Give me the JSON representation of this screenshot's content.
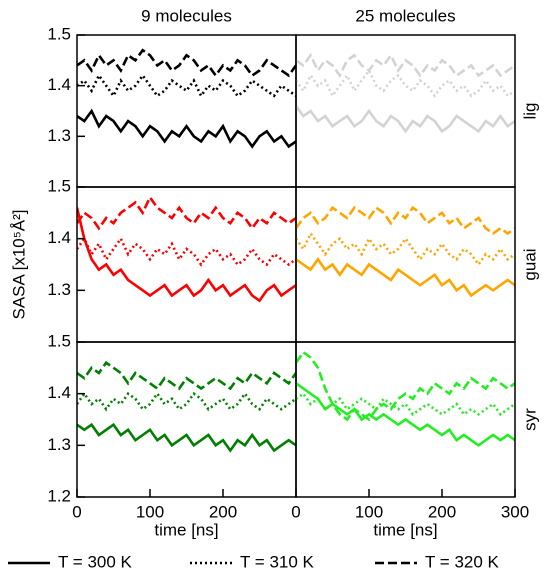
{
  "chart_data": [
    {
      "type": "line",
      "title": "9 molecules",
      "xlim": [
        0,
        300
      ],
      "ylim": [
        1.2,
        1.5
      ],
      "yticks": [
        1.3,
        1.4,
        1.5
      ],
      "legend": "bottom",
      "x": [
        0,
        10,
        20,
        30,
        40,
        50,
        60,
        70,
        80,
        90,
        100,
        110,
        120,
        130,
        140,
        150,
        160,
        170,
        180,
        190,
        200,
        210,
        220,
        230,
        240,
        250,
        260,
        270,
        280,
        290,
        300
      ],
      "series": [
        {
          "name": "T = 300 K",
          "color": "#000000",
          "dash": "solid",
          "values": [
            1.34,
            1.33,
            1.35,
            1.32,
            1.34,
            1.33,
            1.31,
            1.33,
            1.32,
            1.3,
            1.32,
            1.31,
            1.29,
            1.31,
            1.3,
            1.32,
            1.3,
            1.29,
            1.31,
            1.3,
            1.32,
            1.29,
            1.31,
            1.3,
            1.28,
            1.3,
            1.31,
            1.29,
            1.3,
            1.28,
            1.29
          ]
        },
        {
          "name": "T = 310 K",
          "color": "#000000",
          "dash": "dotted",
          "values": [
            1.4,
            1.41,
            1.39,
            1.42,
            1.4,
            1.38,
            1.41,
            1.39,
            1.4,
            1.42,
            1.4,
            1.38,
            1.39,
            1.41,
            1.4,
            1.39,
            1.41,
            1.38,
            1.4,
            1.39,
            1.41,
            1.4,
            1.38,
            1.39,
            1.41,
            1.4,
            1.39,
            1.38,
            1.4,
            1.39,
            1.38
          ]
        },
        {
          "name": "T = 320 K",
          "color": "#000000",
          "dash": "dashed",
          "values": [
            1.44,
            1.45,
            1.43,
            1.46,
            1.44,
            1.45,
            1.43,
            1.46,
            1.45,
            1.47,
            1.46,
            1.44,
            1.45,
            1.43,
            1.44,
            1.46,
            1.45,
            1.43,
            1.44,
            1.42,
            1.44,
            1.43,
            1.45,
            1.44,
            1.42,
            1.43,
            1.45,
            1.44,
            1.43,
            1.42,
            1.44
          ]
        }
      ]
    },
    {
      "type": "line",
      "title": "25 molecules",
      "annotation": "lig",
      "xlim": [
        0,
        300
      ],
      "ylim": [
        1.2,
        1.5
      ],
      "x": [
        0,
        10,
        20,
        30,
        40,
        50,
        60,
        70,
        80,
        90,
        100,
        110,
        120,
        130,
        140,
        150,
        160,
        170,
        180,
        190,
        200,
        210,
        220,
        230,
        240,
        250,
        260,
        270,
        280,
        290,
        300
      ],
      "series": [
        {
          "color": "#d3d3d3",
          "dash": "solid",
          "values": [
            1.36,
            1.34,
            1.35,
            1.33,
            1.34,
            1.32,
            1.33,
            1.34,
            1.32,
            1.33,
            1.35,
            1.33,
            1.32,
            1.34,
            1.33,
            1.31,
            1.33,
            1.32,
            1.34,
            1.33,
            1.31,
            1.32,
            1.34,
            1.33,
            1.32,
            1.31,
            1.33,
            1.32,
            1.34,
            1.32,
            1.33
          ]
        },
        {
          "color": "#d3d3d3",
          "dash": "dotted",
          "values": [
            1.41,
            1.39,
            1.42,
            1.4,
            1.41,
            1.38,
            1.4,
            1.42,
            1.39,
            1.41,
            1.43,
            1.4,
            1.39,
            1.41,
            1.42,
            1.4,
            1.39,
            1.41,
            1.4,
            1.38,
            1.4,
            1.41,
            1.39,
            1.4,
            1.38,
            1.39,
            1.41,
            1.39,
            1.4,
            1.38,
            1.39
          ]
        },
        {
          "color": "#d3d3d3",
          "dash": "dashed",
          "values": [
            1.45,
            1.44,
            1.46,
            1.43,
            1.45,
            1.44,
            1.42,
            1.45,
            1.46,
            1.44,
            1.43,
            1.45,
            1.44,
            1.46,
            1.43,
            1.45,
            1.44,
            1.42,
            1.44,
            1.43,
            1.45,
            1.44,
            1.42,
            1.43,
            1.44,
            1.42,
            1.43,
            1.44,
            1.42,
            1.43,
            1.44
          ]
        }
      ]
    },
    {
      "type": "line",
      "ylabel": "SASA [x10⁵Å²]",
      "xlim": [
        0,
        300
      ],
      "ylim": [
        1.2,
        1.5
      ],
      "yticks": [
        1.3,
        1.4,
        1.5
      ],
      "x": [
        0,
        10,
        20,
        30,
        40,
        50,
        60,
        70,
        80,
        90,
        100,
        110,
        120,
        130,
        140,
        150,
        160,
        170,
        180,
        190,
        200,
        210,
        220,
        230,
        240,
        250,
        260,
        270,
        280,
        290,
        300
      ],
      "series": [
        {
          "color": "#ff0000",
          "dash": "solid",
          "values": [
            1.46,
            1.4,
            1.36,
            1.34,
            1.35,
            1.33,
            1.34,
            1.32,
            1.31,
            1.3,
            1.29,
            1.3,
            1.31,
            1.29,
            1.3,
            1.31,
            1.29,
            1.3,
            1.32,
            1.3,
            1.31,
            1.29,
            1.3,
            1.31,
            1.29,
            1.28,
            1.3,
            1.31,
            1.29,
            1.3,
            1.31
          ]
        },
        {
          "color": "#ff0000",
          "dash": "dotted",
          "values": [
            1.38,
            1.4,
            1.37,
            1.39,
            1.36,
            1.38,
            1.4,
            1.37,
            1.39,
            1.38,
            1.36,
            1.38,
            1.37,
            1.39,
            1.36,
            1.38,
            1.37,
            1.35,
            1.37,
            1.38,
            1.36,
            1.37,
            1.35,
            1.36,
            1.38,
            1.36,
            1.35,
            1.37,
            1.36,
            1.35,
            1.36
          ]
        },
        {
          "color": "#ff0000",
          "dash": "dashed",
          "values": [
            1.43,
            1.45,
            1.44,
            1.42,
            1.44,
            1.43,
            1.45,
            1.46,
            1.47,
            1.45,
            1.48,
            1.46,
            1.45,
            1.44,
            1.46,
            1.44,
            1.43,
            1.45,
            1.44,
            1.46,
            1.44,
            1.43,
            1.45,
            1.44,
            1.42,
            1.44,
            1.43,
            1.45,
            1.44,
            1.43,
            1.44
          ]
        }
      ]
    },
    {
      "type": "line",
      "annotation": "guai",
      "xlim": [
        0,
        300
      ],
      "ylim": [
        1.2,
        1.5
      ],
      "x": [
        0,
        10,
        20,
        30,
        40,
        50,
        60,
        70,
        80,
        90,
        100,
        110,
        120,
        130,
        140,
        150,
        160,
        170,
        180,
        190,
        200,
        210,
        220,
        230,
        240,
        250,
        260,
        270,
        280,
        290,
        300
      ],
      "series": [
        {
          "color": "#ffa500",
          "dash": "solid",
          "values": [
            1.36,
            1.35,
            1.34,
            1.36,
            1.34,
            1.35,
            1.33,
            1.35,
            1.34,
            1.33,
            1.35,
            1.34,
            1.33,
            1.32,
            1.34,
            1.33,
            1.32,
            1.31,
            1.32,
            1.33,
            1.31,
            1.32,
            1.3,
            1.31,
            1.29,
            1.3,
            1.31,
            1.3,
            1.31,
            1.32,
            1.31
          ]
        },
        {
          "color": "#ffa500",
          "dash": "dotted",
          "values": [
            1.4,
            1.38,
            1.41,
            1.39,
            1.37,
            1.39,
            1.4,
            1.38,
            1.39,
            1.37,
            1.4,
            1.38,
            1.39,
            1.37,
            1.38,
            1.4,
            1.38,
            1.36,
            1.38,
            1.37,
            1.39,
            1.37,
            1.36,
            1.38,
            1.37,
            1.35,
            1.37,
            1.36,
            1.38,
            1.36,
            1.37
          ]
        },
        {
          "color": "#ffa500",
          "dash": "dashed",
          "values": [
            1.42,
            1.44,
            1.45,
            1.43,
            1.44,
            1.46,
            1.45,
            1.44,
            1.46,
            1.45,
            1.44,
            1.46,
            1.45,
            1.43,
            1.45,
            1.44,
            1.46,
            1.45,
            1.43,
            1.44,
            1.45,
            1.43,
            1.44,
            1.42,
            1.43,
            1.44,
            1.42,
            1.41,
            1.42,
            1.41,
            1.42
          ]
        }
      ]
    },
    {
      "type": "line",
      "xlabel": "time [ns]",
      "xlim": [
        0,
        300
      ],
      "ylim": [
        1.2,
        1.5
      ],
      "yticks": [
        1.2,
        1.3,
        1.4,
        1.5
      ],
      "xticks": [
        0,
        100,
        200
      ],
      "x": [
        0,
        10,
        20,
        30,
        40,
        50,
        60,
        70,
        80,
        90,
        100,
        110,
        120,
        130,
        140,
        150,
        160,
        170,
        180,
        190,
        200,
        210,
        220,
        230,
        240,
        250,
        260,
        270,
        280,
        290,
        300
      ],
      "series": [
        {
          "color": "#008000",
          "dash": "solid",
          "values": [
            1.34,
            1.33,
            1.34,
            1.32,
            1.33,
            1.34,
            1.32,
            1.33,
            1.31,
            1.32,
            1.33,
            1.31,
            1.32,
            1.3,
            1.31,
            1.32,
            1.3,
            1.31,
            1.32,
            1.3,
            1.31,
            1.29,
            1.31,
            1.3,
            1.32,
            1.3,
            1.31,
            1.29,
            1.3,
            1.31,
            1.3
          ]
        },
        {
          "color": "#008000",
          "dash": "dotted",
          "values": [
            1.38,
            1.4,
            1.38,
            1.39,
            1.37,
            1.39,
            1.38,
            1.4,
            1.39,
            1.37,
            1.38,
            1.4,
            1.38,
            1.39,
            1.37,
            1.38,
            1.4,
            1.39,
            1.37,
            1.38,
            1.39,
            1.37,
            1.38,
            1.4,
            1.38,
            1.37,
            1.39,
            1.38,
            1.37,
            1.38,
            1.39
          ]
        },
        {
          "color": "#008000",
          "dash": "dashed",
          "values": [
            1.44,
            1.43,
            1.45,
            1.44,
            1.46,
            1.45,
            1.44,
            1.42,
            1.44,
            1.43,
            1.42,
            1.41,
            1.43,
            1.42,
            1.41,
            1.43,
            1.42,
            1.41,
            1.42,
            1.43,
            1.42,
            1.41,
            1.43,
            1.42,
            1.44,
            1.43,
            1.42,
            1.44,
            1.43,
            1.42,
            1.44
          ]
        }
      ]
    },
    {
      "type": "line",
      "xlabel": "time [ns]",
      "annotation": "syr",
      "xlim": [
        0,
        300
      ],
      "ylim": [
        1.2,
        1.5
      ],
      "xticks": [
        0,
        100,
        200,
        300
      ],
      "x": [
        0,
        10,
        20,
        30,
        40,
        50,
        60,
        70,
        80,
        90,
        100,
        110,
        120,
        130,
        140,
        150,
        160,
        170,
        180,
        190,
        200,
        210,
        220,
        230,
        240,
        250,
        260,
        270,
        280,
        290,
        300
      ],
      "series": [
        {
          "color": "#22ee22",
          "dash": "solid",
          "values": [
            1.42,
            1.41,
            1.4,
            1.39,
            1.37,
            1.38,
            1.37,
            1.36,
            1.37,
            1.35,
            1.36,
            1.35,
            1.36,
            1.35,
            1.34,
            1.35,
            1.34,
            1.33,
            1.34,
            1.33,
            1.32,
            1.33,
            1.31,
            1.32,
            1.31,
            1.3,
            1.31,
            1.32,
            1.31,
            1.32,
            1.31
          ]
        },
        {
          "color": "#22ee22",
          "dash": "dotted",
          "values": [
            1.39,
            1.4,
            1.38,
            1.39,
            1.37,
            1.38,
            1.39,
            1.37,
            1.38,
            1.39,
            1.38,
            1.37,
            1.39,
            1.38,
            1.37,
            1.38,
            1.36,
            1.37,
            1.38,
            1.37,
            1.36,
            1.37,
            1.38,
            1.36,
            1.37,
            1.36,
            1.37,
            1.38,
            1.36,
            1.37,
            1.38
          ]
        },
        {
          "color": "#22ee22",
          "dash": "dashed",
          "values": [
            1.46,
            1.48,
            1.47,
            1.45,
            1.41,
            1.38,
            1.36,
            1.35,
            1.37,
            1.36,
            1.35,
            1.37,
            1.38,
            1.37,
            1.39,
            1.4,
            1.39,
            1.41,
            1.4,
            1.42,
            1.41,
            1.4,
            1.42,
            1.41,
            1.43,
            1.42,
            1.41,
            1.43,
            1.42,
            1.41,
            1.42
          ]
        }
      ]
    }
  ]
}
